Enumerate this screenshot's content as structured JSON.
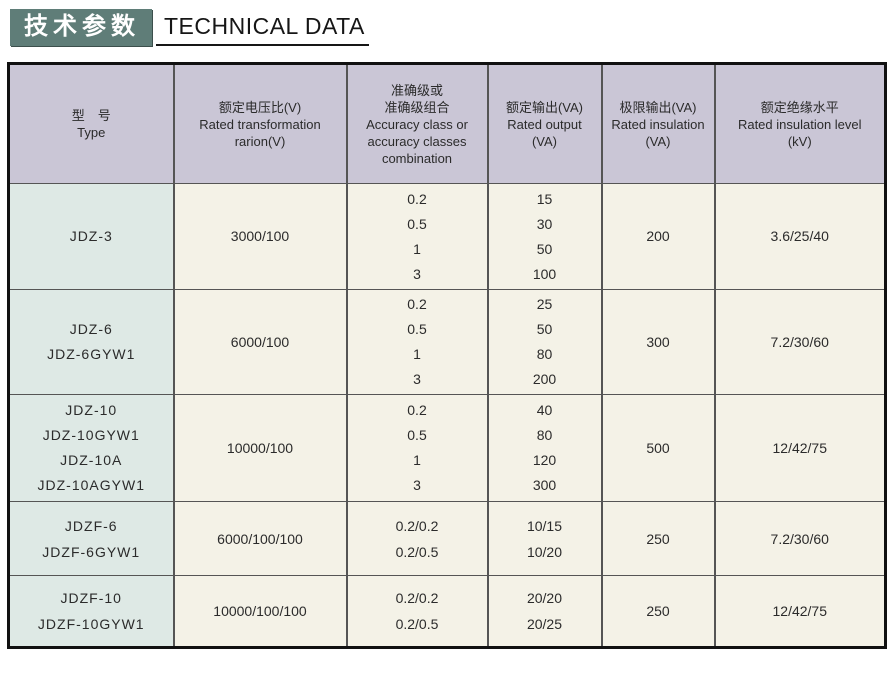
{
  "page_title": {
    "zh": "技术参数",
    "en": "TECHNICAL DATA"
  },
  "colors": {
    "title_bg": "#5f7d78",
    "header_bg": "#cac6d6",
    "type_col_bg": "#dee9e5",
    "cell_bg": "#f4f2e7",
    "border_outer": "#111111",
    "border_inner": "#555555",
    "text": "#2b2b2b"
  },
  "table": {
    "columns": [
      {
        "lines": [
          "型　号",
          "Type"
        ]
      },
      {
        "lines": [
          "额定电压比(V)",
          "Rated transformation",
          "rarion(V)"
        ]
      },
      {
        "lines": [
          "准确级或",
          "准确级组合",
          "Accuracy class or",
          "accuracy classes",
          "combination"
        ]
      },
      {
        "lines": [
          "额定输出(VA)",
          "Rated output",
          "(VA)"
        ]
      },
      {
        "lines": [
          "极限输出(VA)",
          "Rated insulation",
          "(VA)"
        ]
      },
      {
        "lines": [
          "额定绝缘水平",
          "Rated insulation level",
          "(kV)"
        ]
      }
    ],
    "rows": [
      {
        "cells": [
          [
            "JDZ-3"
          ],
          [
            "3000/100"
          ],
          [
            "0.2",
            "0.5",
            "1",
            "3"
          ],
          [
            "15",
            "30",
            "50",
            "100"
          ],
          [
            "200"
          ],
          [
            "3.6/25/40"
          ]
        ]
      },
      {
        "cells": [
          [
            "JDZ-6",
            "JDZ-6GYW1"
          ],
          [
            "6000/100"
          ],
          [
            "0.2",
            "0.5",
            "1",
            "3"
          ],
          [
            "25",
            "50",
            "80",
            "200"
          ],
          [
            "300"
          ],
          [
            "7.2/30/60"
          ]
        ]
      },
      {
        "cells": [
          [
            "JDZ-10",
            "JDZ-10GYW1",
            "JDZ-10A",
            "JDZ-10AGYW1"
          ],
          [
            "10000/100"
          ],
          [
            "0.2",
            "0.5",
            "1",
            "3"
          ],
          [
            "40",
            "80",
            "120",
            "300"
          ],
          [
            "500"
          ],
          [
            "12/42/75"
          ]
        ]
      },
      {
        "cells": [
          [
            "JDZF-6",
            "JDZF-6GYW1"
          ],
          [
            "6000/100/100"
          ],
          [
            "0.2/0.2",
            "0.2/0.5"
          ],
          [
            "10/15",
            "10/20"
          ],
          [
            "250"
          ],
          [
            "7.2/30/60"
          ]
        ]
      },
      {
        "cells": [
          [
            "JDZF-10",
            "JDZF-10GYW1"
          ],
          [
            "10000/100/100"
          ],
          [
            "0.2/0.2",
            "0.2/0.5"
          ],
          [
            "20/20",
            "20/25"
          ],
          [
            "250"
          ],
          [
            "12/42/75"
          ]
        ]
      }
    ]
  }
}
